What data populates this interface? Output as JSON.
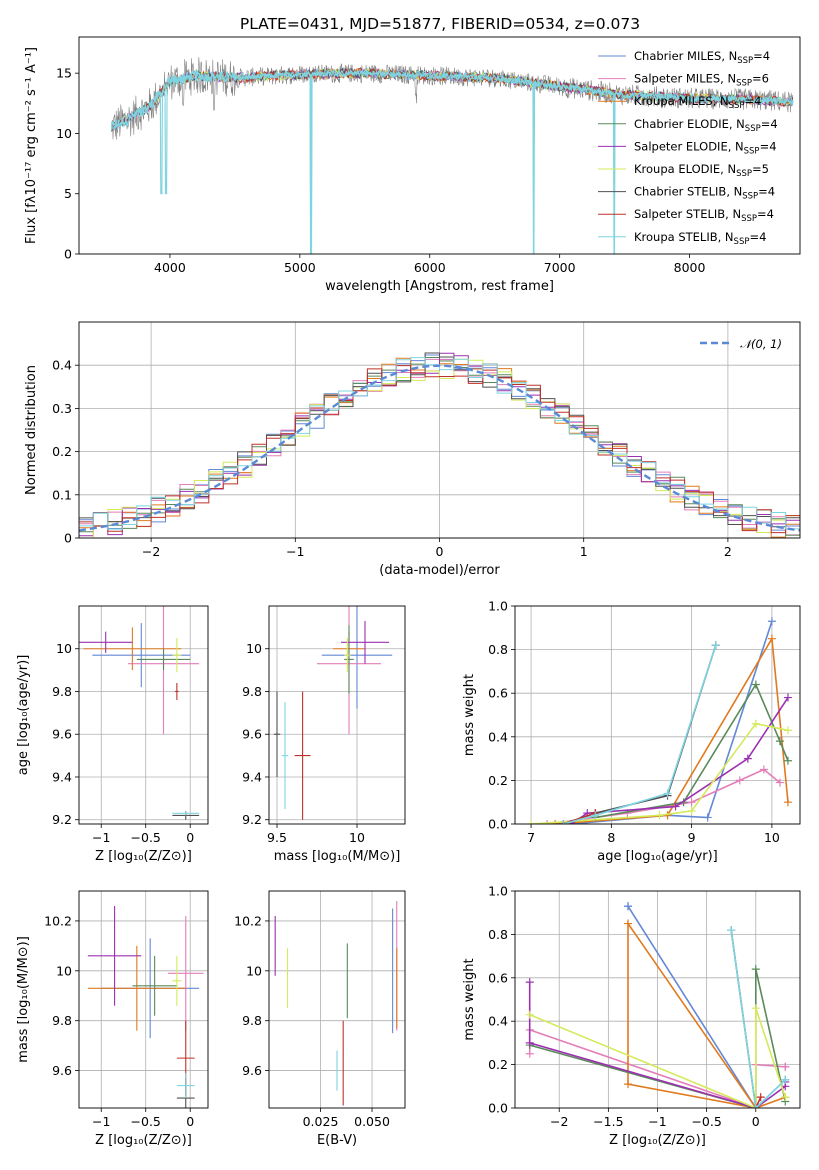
{
  "title": "PLATE=0431, MJD=51877, FIBERID=0534, z=0.073",
  "models": [
    {
      "name": "Chabrier MILES, N",
      "sub": "SSP",
      "suffix": "=4",
      "color": "#6388d6"
    },
    {
      "name": "Salpeter MILES, N",
      "sub": "SSP",
      "suffix": "=6",
      "color": "#e37eb8"
    },
    {
      "name": "Kroupa MILES, N",
      "sub": "SSP",
      "suffix": "=4",
      "color": "#e07a1f"
    },
    {
      "name": "Chabrier ELODIE, N",
      "sub": "SSP",
      "suffix": "=4",
      "color": "#5a8a5a"
    },
    {
      "name": "Salpeter ELODIE, N",
      "sub": "SSP",
      "suffix": "=4",
      "color": "#9b30b0"
    },
    {
      "name": "Kroupa ELODIE, N",
      "sub": "SSP",
      "suffix": "=5",
      "color": "#d4ea5a"
    },
    {
      "name": "Chabrier STELIB, N",
      "sub": "SSP",
      "suffix": "=4",
      "color": "#505050"
    },
    {
      "name": "Salpeter STELIB, N",
      "sub": "SSP",
      "suffix": "=4",
      "color": "#c0302a"
    },
    {
      "name": "Kroupa STELIB, N",
      "sub": "SSP",
      "suffix": "=4",
      "color": "#7ed4e0"
    }
  ],
  "chart_data": [
    {
      "id": "spectrum",
      "type": "line",
      "xlabel": "wavelength [Angstrom, rest frame]",
      "ylabel": "Flux [fλ10⁻¹⁷ erg cm⁻² s⁻¹ A⁻¹]",
      "xlim": [
        3300,
        8850
      ],
      "ylim": [
        0,
        18
      ],
      "xticks": [
        4000,
        5000,
        6000,
        7000,
        8000
      ],
      "yticks": [
        0,
        5,
        10,
        15
      ],
      "spectrum_shape": [
        [
          3550,
          10.5
        ],
        [
          3700,
          11.3
        ],
        [
          3850,
          12.3
        ],
        [
          4000,
          14.3
        ],
        [
          4200,
          14.8
        ],
        [
          4500,
          14.6
        ],
        [
          5000,
          14.9
        ],
        [
          5500,
          15.0
        ],
        [
          6000,
          14.8
        ],
        [
          6500,
          14.6
        ],
        [
          7000,
          13.9
        ],
        [
          7500,
          13.2
        ],
        [
          8000,
          12.9
        ],
        [
          8500,
          12.8
        ],
        [
          8800,
          12.6
        ]
      ],
      "observed_color": "#808080",
      "model_color": "#7ed4e0",
      "dips": [
        [
          3934,
          5
        ],
        [
          3969,
          5
        ],
        [
          4102,
          12
        ],
        [
          4340,
          11
        ],
        [
          5085,
          0
        ],
        [
          5893,
          12.5
        ],
        [
          6563,
          15.5
        ],
        [
          6800,
          0
        ],
        [
          7420,
          0
        ]
      ]
    },
    {
      "id": "residuals",
      "type": "histogram",
      "xlabel": "(data-model)/error",
      "ylabel": "Normed distribution",
      "xlim": [
        -2.5,
        2.5
      ],
      "ylim": [
        0,
        0.5
      ],
      "xticks": [
        -2,
        -1,
        0,
        1,
        2
      ],
      "yticks": [
        0.0,
        0.1,
        0.2,
        0.3,
        0.4
      ],
      "bin_width": 0.1,
      "reference": {
        "name": "𝒩(0, 1)",
        "mean": 0,
        "sigma": 1,
        "color": "#5a8ad6"
      }
    },
    {
      "id": "age-vs-metallicity",
      "type": "scatter",
      "xlabel": "Z [log₁₀(Z/Z⊙)]",
      "ylabel": "age  [log₁₀(age/yr)]",
      "xlim": [
        -1.25,
        0.2
      ],
      "ylim": [
        9.18,
        10.2
      ],
      "xticks": [
        -1.0,
        -0.5,
        0.0
      ],
      "yticks": [
        9.2,
        9.4,
        9.6,
        9.8,
        10.0
      ],
      "points": [
        {
          "model": 0,
          "x": -0.55,
          "xerr": 0.55,
          "y": 9.97,
          "yerr": 0.15
        },
        {
          "model": 1,
          "x": -0.3,
          "xerr": 0.4,
          "y": 9.93,
          "yerr": 0.33
        },
        {
          "model": 2,
          "x": -0.65,
          "xerr": 0.55,
          "y": 10.0,
          "yerr": 0.1
        },
        {
          "model": 3,
          "x": -0.3,
          "xerr": 0.3,
          "y": 9.95,
          "yerr": 0.05
        },
        {
          "model": 4,
          "x": -0.95,
          "xerr": 0.3,
          "y": 10.03,
          "yerr": 0.05
        },
        {
          "model": 5,
          "x": -0.15,
          "xerr": 0.05,
          "y": 9.97,
          "yerr": 0.08
        },
        {
          "model": 6,
          "x": -0.05,
          "xerr": 0.15,
          "y": 9.22,
          "yerr": 0.02
        },
        {
          "model": 7,
          "x": -0.15,
          "xerr": 0.02,
          "y": 9.8,
          "yerr": 0.04
        },
        {
          "model": 8,
          "x": -0.05,
          "xerr": 0.15,
          "y": 9.23,
          "yerr": 0.01
        }
      ]
    },
    {
      "id": "age-vs-mass",
      "type": "scatter",
      "xlabel": "mass [log₁₀(M/M⊙)]",
      "ylabel": "",
      "xlim": [
        9.45,
        10.3
      ],
      "ylim": [
        9.18,
        10.2
      ],
      "xticks": [
        9.5,
        10.0
      ],
      "yticks": [
        9.2,
        9.4,
        9.6,
        9.8,
        10.0
      ],
      "points": [
        {
          "model": 0,
          "x": 10.0,
          "xerr": 0.22,
          "y": 9.97,
          "yerr": 0.25
        },
        {
          "model": 1,
          "x": 9.95,
          "xerr": 0.2,
          "y": 9.93,
          "yerr": 0.33
        },
        {
          "model": 2,
          "x": 9.95,
          "xerr": 0.1,
          "y": 10.0,
          "yerr": 0.08
        },
        {
          "model": 3,
          "x": 9.95,
          "xerr": 0.03,
          "y": 9.95,
          "yerr": 0.16
        },
        {
          "model": 4,
          "x": 10.05,
          "xerr": 0.15,
          "y": 10.03,
          "yerr": 0.1
        },
        {
          "model": 5,
          "x": 9.94,
          "xerr": 0.02,
          "y": 9.97,
          "yerr": 0.08
        },
        {
          "model": 6,
          "x": 9.5,
          "xerr": 0.02,
          "y": 9.6,
          "yerr": 0.2
        },
        {
          "model": 7,
          "x": 9.66,
          "xerr": 0.05,
          "y": 9.5,
          "yerr": 0.3
        },
        {
          "model": 8,
          "x": 9.55,
          "xerr": 0.02,
          "y": 9.5,
          "yerr": 0.25
        }
      ]
    },
    {
      "id": "mass-weight-vs-age",
      "type": "line",
      "xlabel": "age  [log₁₀(age/yr)]",
      "ylabel": "mass weight",
      "xlim": [
        6.8,
        10.35
      ],
      "ylim": [
        0,
        1.0
      ],
      "xticks": [
        7,
        8,
        9,
        10
      ],
      "yticks": [
        0.0,
        0.2,
        0.4,
        0.6,
        0.8,
        1.0
      ],
      "series": [
        {
          "model": 0,
          "x": [
            7.5,
            8.7,
            9.2,
            10.0
          ],
          "y": [
            0.0,
            0.04,
            0.03,
            0.93
          ]
        },
        {
          "model": 1,
          "x": [
            7.2,
            8.2,
            9.0,
            9.6,
            9.9,
            10.1
          ],
          "y": [
            0.0,
            0.05,
            0.1,
            0.2,
            0.25,
            0.19
          ]
        },
        {
          "model": 2,
          "x": [
            7.3,
            8.7,
            10.0,
            10.2
          ],
          "y": [
            0.0,
            0.04,
            0.85,
            0.1
          ]
        },
        {
          "model": 3,
          "x": [
            7.8,
            8.9,
            9.8,
            10.1,
            10.2
          ],
          "y": [
            0.03,
            0.1,
            0.64,
            0.38,
            0.29
          ]
        },
        {
          "model": 4,
          "x": [
            7.5,
            7.7,
            8.8,
            9.7,
            10.2
          ],
          "y": [
            0.0,
            0.05,
            0.08,
            0.3,
            0.58
          ]
        },
        {
          "model": 5,
          "x": [
            7.0,
            8.6,
            9.0,
            9.8,
            10.2
          ],
          "y": [
            0.0,
            0.04,
            0.06,
            0.46,
            0.43
          ]
        },
        {
          "model": 6,
          "x": [
            7.4,
            7.8,
            8.7,
            9.3
          ],
          "y": [
            0.0,
            0.05,
            0.13,
            0.82
          ]
        },
        {
          "model": 7,
          "x": [
            7.4,
            7.8
          ],
          "y": [
            0.0,
            0.05
          ]
        },
        {
          "model": 8,
          "x": [
            7.4,
            7.8,
            8.7,
            9.3
          ],
          "y": [
            0.0,
            0.04,
            0.14,
            0.82
          ]
        }
      ]
    },
    {
      "id": "mass-vs-metallicity",
      "type": "scatter",
      "xlabel": "Z [log₁₀(Z/Z⊙)]",
      "ylabel": "mass [log₁₀(M/M⊙)]",
      "xlim": [
        -1.25,
        0.2
      ],
      "ylim": [
        9.45,
        10.32
      ],
      "xticks": [
        -1.0,
        -0.5,
        0.0
      ],
      "yticks": [
        9.6,
        9.8,
        10.0,
        10.2
      ],
      "points": [
        {
          "model": 0,
          "x": -0.45,
          "xerr": 0.55,
          "y": 9.93,
          "yerr": 0.2
        },
        {
          "model": 1,
          "x": -0.05,
          "xerr": 0.2,
          "y": 9.99,
          "yerr": 0.23
        },
        {
          "model": 2,
          "x": -0.6,
          "xerr": 0.55,
          "y": 9.93,
          "yerr": 0.17
        },
        {
          "model": 3,
          "x": -0.4,
          "xerr": 0.25,
          "y": 9.94,
          "yerr": 0.12
        },
        {
          "model": 4,
          "x": -0.85,
          "xerr": 0.3,
          "y": 10.06,
          "yerr": 0.2
        },
        {
          "model": 5,
          "x": -0.15,
          "xerr": 0.05,
          "y": 9.96,
          "yerr": 0.1
        },
        {
          "model": 6,
          "x": -0.05,
          "xerr": 0.1,
          "y": 9.49,
          "yerr": 0.08
        },
        {
          "model": 7,
          "x": -0.05,
          "xerr": 0.1,
          "y": 9.65,
          "yerr": 0.15
        },
        {
          "model": 8,
          "x": -0.05,
          "xerr": 0.1,
          "y": 9.54,
          "yerr": 0.05
        }
      ]
    },
    {
      "id": "mass-vs-extinction",
      "type": "scatter",
      "xlabel": "E(B-V)",
      "ylabel": "",
      "xlim": [
        0.0,
        0.066
      ],
      "ylim": [
        9.45,
        10.32
      ],
      "xticks": [
        0.025,
        0.05
      ],
      "xtick_labels": [
        "0.025",
        "0.050"
      ],
      "yticks": [
        9.6,
        9.8,
        10.0,
        10.2
      ],
      "points": [
        {
          "model": 0,
          "x": 0.06,
          "xerr": 0,
          "y": 10.0,
          "yerr": 0.25
        },
        {
          "model": 1,
          "x": 0.062,
          "xerr": 0,
          "y": 10.02,
          "yerr": 0.26
        },
        {
          "model": 2,
          "x": 0.062,
          "xerr": 0,
          "y": 9.93,
          "yerr": 0.16
        },
        {
          "model": 3,
          "x": 0.038,
          "xerr": 0,
          "y": 9.96,
          "yerr": 0.15
        },
        {
          "model": 4,
          "x": 0.003,
          "xerr": 0,
          "y": 10.1,
          "yerr": 0.12
        },
        {
          "model": 5,
          "x": 0.009,
          "xerr": 0,
          "y": 9.97,
          "yerr": 0.12
        },
        {
          "model": 6,
          "x": 0.035,
          "xerr": 0,
          "y": 9.75,
          "yerr": 0.0
        },
        {
          "model": 7,
          "x": 0.036,
          "xerr": 0,
          "y": 9.63,
          "yerr": 0.17
        },
        {
          "model": 8,
          "x": 0.033,
          "xerr": 0,
          "y": 9.6,
          "yerr": 0.08
        }
      ]
    },
    {
      "id": "mass-weight-vs-metallicity",
      "type": "line",
      "xlabel": "Z [log₁₀(Z/Z⊙)]",
      "ylabel": "mass weight",
      "xlim": [
        -2.45,
        0.45
      ],
      "ylim": [
        0,
        1.0
      ],
      "xticks": [
        -2.0,
        -1.5,
        -1.0,
        -0.5,
        0.0
      ],
      "yticks": [
        0.0,
        0.2,
        0.4,
        0.6,
        0.8,
        1.0
      ],
      "series": [
        {
          "model": 0,
          "x": [
            0.3,
            0.0,
            -1.3,
            -1.3
          ],
          "y": [
            0.13,
            0.0,
            0.93,
            0.93
          ]
        },
        {
          "model": 1,
          "x": [
            -2.3,
            -2.3,
            0.0,
            0.0,
            0.3,
            0.3
          ],
          "y": [
            0.25,
            0.36,
            0.0,
            0.2,
            0.19,
            0.19
          ]
        },
        {
          "model": 2,
          "x": [
            0.3,
            0.0,
            -1.3,
            -1.3,
            0.0
          ],
          "y": [
            0.05,
            0.0,
            0.85,
            0.11,
            0.0
          ]
        },
        {
          "model": 3,
          "x": [
            -2.3,
            0.0,
            0.0,
            0.3
          ],
          "y": [
            0.29,
            0.0,
            0.64,
            0.03
          ]
        },
        {
          "model": 4,
          "x": [
            -2.3,
            -2.3,
            0.0,
            0.3,
            0.3
          ],
          "y": [
            0.58,
            0.3,
            0.0,
            0.1,
            0.12
          ]
        },
        {
          "model": 5,
          "x": [
            -2.3,
            0.0,
            0.0,
            0.3
          ],
          "y": [
            0.43,
            0.0,
            0.46,
            0.05
          ]
        },
        {
          "model": 6,
          "x": [
            -0.25,
            0.0
          ],
          "y": [
            0.82,
            0.0
          ]
        },
        {
          "model": 7,
          "x": [
            0.0,
            0.05
          ],
          "y": [
            0.0,
            0.05
          ]
        },
        {
          "model": 8,
          "x": [
            -0.25,
            0.0,
            0.3
          ],
          "y": [
            0.82,
            0.0,
            0.13
          ]
        }
      ]
    }
  ]
}
